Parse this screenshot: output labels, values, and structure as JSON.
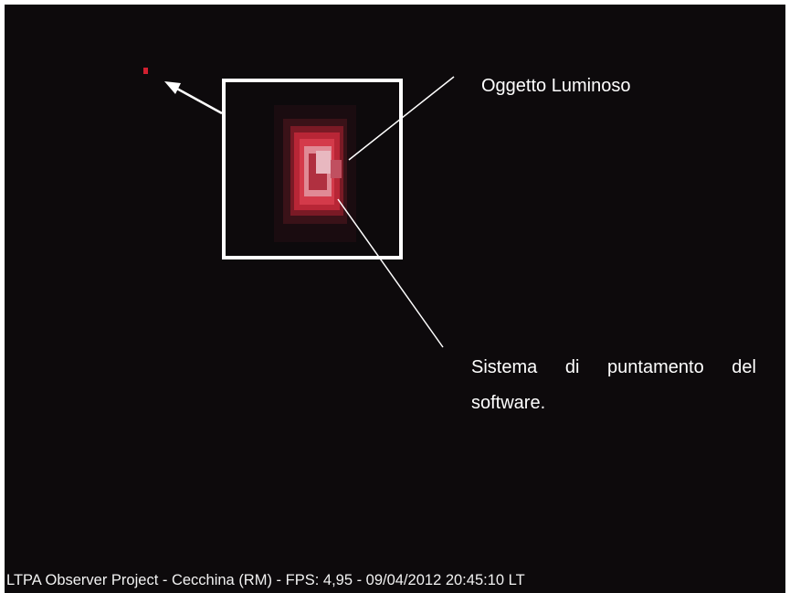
{
  "annotations": {
    "object_label": "Oggetto Luminoso",
    "pointer_label": "Sistema di puntamento del software."
  },
  "footer": {
    "caption": "LTPA Observer Project - Cecchina (RM) - FPS: 4,95 - 09/04/2012 20:45:10 LT"
  }
}
